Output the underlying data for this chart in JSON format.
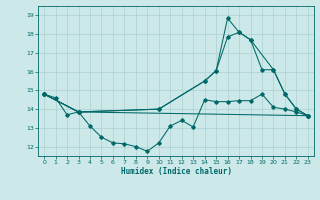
{
  "xlabel": "Humidex (Indice chaleur)",
  "ylabel": "",
  "bg_color": "#cce8e8",
  "line_color": "#006868",
  "grid_color": "#aad0d0",
  "xlim": [
    -0.5,
    23.5
  ],
  "ylim": [
    11.5,
    19.5
  ],
  "yticks": [
    12,
    13,
    14,
    15,
    16,
    17,
    18,
    19
  ],
  "xticks": [
    0,
    1,
    2,
    3,
    4,
    5,
    6,
    7,
    8,
    9,
    10,
    11,
    12,
    13,
    14,
    15,
    16,
    17,
    18,
    19,
    20,
    21,
    22,
    23
  ],
  "series": [
    {
      "x": [
        0,
        1,
        2,
        3,
        4,
        5,
        6,
        7,
        8,
        9,
        10,
        11,
        12,
        13,
        14,
        15,
        16,
        17,
        18,
        19,
        20,
        21,
        22,
        23
      ],
      "y": [
        14.8,
        14.6,
        13.7,
        13.85,
        13.1,
        12.5,
        12.2,
        12.15,
        12.0,
        11.75,
        12.2,
        13.1,
        13.4,
        13.05,
        14.5,
        14.4,
        14.4,
        14.45,
        14.45,
        14.8,
        14.1,
        14.0,
        13.85,
        13.65
      ]
    },
    {
      "x": [
        0,
        3,
        10,
        14,
        15,
        16,
        17,
        18,
        19,
        20,
        21,
        22,
        23
      ],
      "y": [
        14.8,
        13.85,
        14.0,
        15.5,
        16.05,
        18.85,
        18.1,
        17.7,
        16.1,
        16.1,
        14.8,
        14.0,
        13.65
      ]
    },
    {
      "x": [
        0,
        3,
        10,
        14,
        15,
        16,
        17,
        18,
        20,
        21,
        22,
        23
      ],
      "y": [
        14.8,
        13.85,
        14.0,
        15.5,
        16.05,
        17.85,
        18.1,
        17.7,
        16.1,
        14.8,
        14.0,
        13.65
      ]
    },
    {
      "x": [
        0,
        3,
        23
      ],
      "y": [
        14.8,
        13.85,
        13.65
      ]
    }
  ]
}
